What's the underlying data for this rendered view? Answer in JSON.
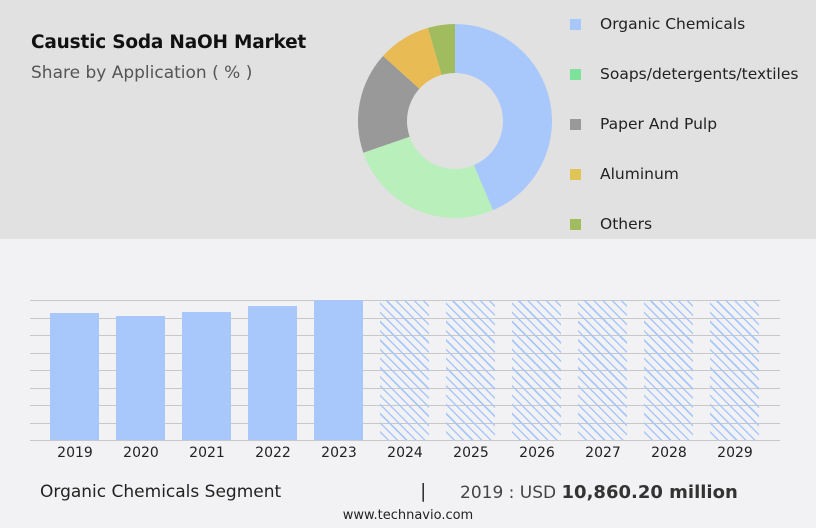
{
  "header": {
    "title": "Caustic Soda NaOH Market",
    "subtitle": "Share by Application ( % )"
  },
  "legend": [
    {
      "label": "Organic Chemicals",
      "color": "#a8c8fc"
    },
    {
      "label": "Soaps/detergents/textiles",
      "color": "#7de39a"
    },
    {
      "label": "Paper And Pulp",
      "color": "#999999"
    },
    {
      "label": "Aluminum",
      "color": "#e0c455"
    },
    {
      "label": "Others",
      "color": "#a0bc5e"
    }
  ],
  "footer": {
    "segment": "Organic Chemicals Segment",
    "separator": "|",
    "value_prefix": "2019 : USD ",
    "value_bold": "10,860.20 million",
    "site": "www.technavio.com"
  },
  "chart_data": [
    {
      "type": "pie",
      "title": "Caustic Soda NaOH Market",
      "subtitle": "Share by Application ( % )",
      "donut": true,
      "categories": [
        "Organic Chemicals",
        "Soaps/detergents/textiles",
        "Paper And Pulp",
        "Aluminum",
        "Others"
      ],
      "values": [
        43.6,
        26.1,
        17.0,
        8.8,
        4.5
      ],
      "colors": [
        "#a8c8fc",
        "#b8efbb",
        "#999999",
        "#e8bb55",
        "#a0bc5e"
      ],
      "legend_position": "right"
    },
    {
      "type": "bar",
      "title": "Organic Chemicals Segment",
      "categories": [
        "2019",
        "2020",
        "2021",
        "2022",
        "2023",
        "2024",
        "2025",
        "2026",
        "2027",
        "2028",
        "2029"
      ],
      "values": [
        10860.2,
        10590,
        10950,
        11400,
        11930,
        null,
        null,
        null,
        null,
        null,
        null
      ],
      "forecast": [
        false,
        false,
        false,
        false,
        false,
        true,
        true,
        true,
        true,
        true,
        true
      ],
      "xlabel": "",
      "ylabel": "",
      "grid": true,
      "annotation": "2019 : USD 10,860.20 million",
      "bar_color": "#a8c8fc"
    }
  ]
}
